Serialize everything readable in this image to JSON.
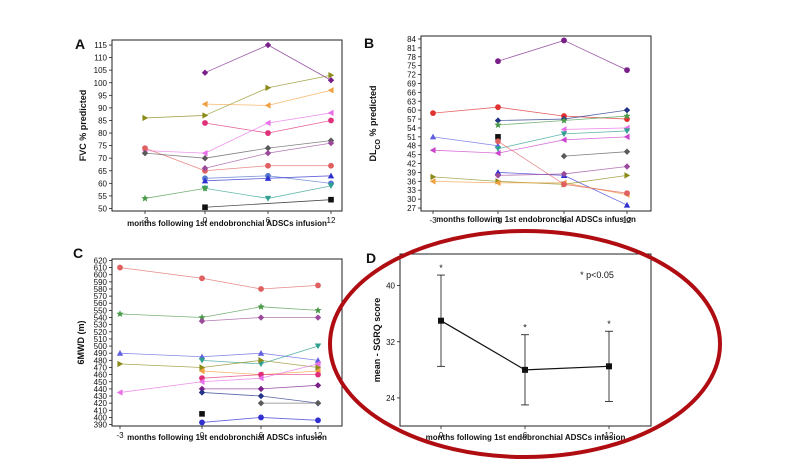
{
  "chart_data": [
    {
      "panel": "A",
      "type": "line",
      "ylabel": "FVC % predicted",
      "xlabel": "months following 1st endobronchial ADSCs infusion",
      "ylim": [
        49,
        117
      ],
      "yticks": [
        50,
        55,
        60,
        65,
        70,
        75,
        80,
        85,
        90,
        95,
        100,
        105,
        110,
        115
      ],
      "x": [
        "-3",
        "0",
        "6",
        "12"
      ],
      "series": [
        {
          "color": "#7a1f8a",
          "marker": "diamond",
          "values": [
            null,
            104,
            115,
            101
          ]
        },
        {
          "color": "#8b8b1a",
          "marker": "tri-right",
          "values": [
            86,
            87,
            98,
            103
          ]
        },
        {
          "color": "#f0a040",
          "marker": "tri-left",
          "values": [
            null,
            91.5,
            91,
            97
          ]
        },
        {
          "color": "#e0307a",
          "marker": "circle",
          "values": [
            null,
            84,
            80,
            85
          ]
        },
        {
          "color": "#e870e8",
          "marker": "tri-left",
          "values": [
            73,
            72,
            84,
            88
          ]
        },
        {
          "color": "#e06060",
          "marker": "circle",
          "values": [
            74,
            65,
            67,
            67
          ]
        },
        {
          "color": "#5a5a5a",
          "marker": "diamond",
          "values": [
            72,
            70,
            74,
            77
          ]
        },
        {
          "color": "#9b4a9b",
          "marker": "diamond",
          "values": [
            null,
            66,
            72,
            76
          ]
        },
        {
          "color": "#5577cc",
          "marker": "circle",
          "values": [
            null,
            62,
            63,
            60
          ]
        },
        {
          "color": "#3030d0",
          "marker": "tri-up",
          "values": [
            null,
            61,
            62,
            63
          ]
        },
        {
          "color": "#30a090",
          "marker": "tri-down",
          "values": [
            null,
            58,
            54,
            59
          ]
        },
        {
          "color": "#4a9a4a",
          "marker": "star",
          "values": [
            54,
            58,
            null,
            null
          ]
        },
        {
          "color": "#111111",
          "marker": "square",
          "values": [
            null,
            50.5,
            null,
            53.5
          ]
        }
      ]
    },
    {
      "panel": "B",
      "type": "line",
      "ylabel": "DLCO % predicted",
      "ylabel_main": "DL",
      "ylabel_sub": "CO",
      "ylabel_rest": " % predicted",
      "xlabel": "months following 1st endobronchial ADSCs infusion",
      "ylim": [
        26,
        85
      ],
      "yticks": [
        27,
        30,
        33,
        36,
        39,
        42,
        45,
        48,
        51,
        54,
        57,
        60,
        63,
        66,
        69,
        72,
        75,
        78,
        81,
        84
      ],
      "x": [
        "-3",
        "0",
        "6",
        "12"
      ],
      "series": [
        {
          "color": "#7a1f8a",
          "marker": "circle",
          "values": [
            null,
            76.5,
            83.5,
            73.5
          ]
        },
        {
          "color": "#e03030",
          "marker": "circle",
          "values": [
            59,
            61,
            58,
            57
          ]
        },
        {
          "color": "#223388",
          "marker": "diamond",
          "values": [
            null,
            56.5,
            57,
            60
          ]
        },
        {
          "color": "#4a9a4a",
          "marker": "star",
          "values": [
            null,
            55,
            56.5,
            58
          ]
        },
        {
          "color": "#e870e8",
          "marker": "tri-left",
          "values": [
            null,
            null,
            53.5,
            54
          ]
        },
        {
          "color": "#111111",
          "marker": "square",
          "values": [
            null,
            51,
            null,
            null
          ]
        },
        {
          "color": "#6060e0",
          "marker": "tri-up",
          "values": [
            51,
            48,
            null,
            null
          ]
        },
        {
          "color": "#cc44cc",
          "marker": "tri-left",
          "values": [
            46.5,
            45.5,
            50,
            51
          ]
        },
        {
          "color": "#30a090",
          "marker": "tri-down",
          "values": [
            null,
            47,
            52,
            53
          ]
        },
        {
          "color": "#5a5a5a",
          "marker": "diamond",
          "values": [
            null,
            null,
            44.5,
            46
          ]
        },
        {
          "color": "#3030d0",
          "marker": "tri-up",
          "values": [
            null,
            39,
            38,
            28
          ]
        },
        {
          "color": "#9b4a9b",
          "marker": "diamond",
          "values": [
            null,
            38,
            38.5,
            41
          ]
        },
        {
          "color": "#8b8b1a",
          "marker": "tri-right",
          "values": [
            37.5,
            36,
            35,
            38
          ]
        },
        {
          "color": "#f0a040",
          "marker": "tri-left",
          "values": [
            36,
            35.5,
            35.5,
            31.5
          ]
        },
        {
          "color": "#e06060",
          "marker": "circle",
          "values": [
            null,
            49.5,
            35,
            32
          ]
        }
      ]
    },
    {
      "panel": "C",
      "type": "line",
      "ylabel": "6MWD (m)",
      "xlabel": "months following 1st endobronchial ADSCs infusion",
      "ylim": [
        388,
        622
      ],
      "yticks": [
        390,
        400,
        410,
        420,
        430,
        440,
        450,
        460,
        470,
        480,
        490,
        500,
        510,
        520,
        530,
        540,
        550,
        560,
        570,
        580,
        590,
        600,
        610,
        620
      ],
      "x": [
        "-3",
        "0",
        "6",
        "12"
      ],
      "series": [
        {
          "color": "#e06060",
          "marker": "circle",
          "values": [
            610,
            595,
            580,
            585
          ]
        },
        {
          "color": "#4a9a4a",
          "marker": "star",
          "values": [
            545,
            540,
            555,
            550
          ]
        },
        {
          "color": "#9b4a9b",
          "marker": "diamond",
          "values": [
            null,
            535,
            540,
            540
          ]
        },
        {
          "color": "#6060e0",
          "marker": "tri-up",
          "values": [
            490,
            485,
            490,
            480
          ]
        },
        {
          "color": "#30a090",
          "marker": "tri-down",
          "values": [
            null,
            480,
            475,
            500
          ]
        },
        {
          "color": "#8b8b1a",
          "marker": "tri-right",
          "values": [
            475,
            470,
            480,
            470
          ]
        },
        {
          "color": "#f0a040",
          "marker": "tri-left",
          "values": [
            null,
            465,
            460,
            465
          ]
        },
        {
          "color": "#e0307a",
          "marker": "circle",
          "values": [
            null,
            455,
            460,
            460
          ]
        },
        {
          "color": "#e870e8",
          "marker": "tri-left",
          "values": [
            435,
            450,
            455,
            475
          ]
        },
        {
          "color": "#7a1f8a",
          "marker": "diamond",
          "values": [
            null,
            440,
            440,
            445
          ]
        },
        {
          "color": "#223388",
          "marker": "diamond",
          "values": [
            null,
            435,
            430,
            420
          ]
        },
        {
          "color": "#111111",
          "marker": "square",
          "values": [
            null,
            405,
            null,
            null
          ]
        },
        {
          "color": "#5a5a5a",
          "marker": "diamond",
          "values": [
            null,
            null,
            420,
            420
          ]
        },
        {
          "color": "#3030d0",
          "marker": "circle",
          "values": [
            null,
            393,
            400,
            396
          ]
        }
      ]
    },
    {
      "panel": "D",
      "type": "line",
      "ylabel": "mean - SGRQ score",
      "xlabel": "months following 1st endobronchial ADSCs infusion",
      "ylim": [
        20,
        44.5
      ],
      "yticks": [
        24,
        32,
        40
      ],
      "x": [
        "0",
        "6",
        "12"
      ],
      "values": [
        35,
        28,
        28.5
      ],
      "error": [
        6.5,
        5,
        5
      ],
      "significance": [
        "*",
        "*",
        "*"
      ],
      "annotation": "* p<0.05"
    }
  ]
}
